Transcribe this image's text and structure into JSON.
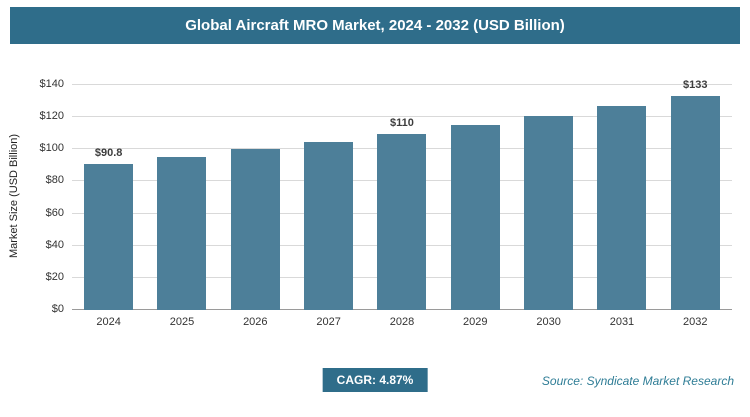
{
  "header": {
    "title": "Global Aircraft MRO Market, 2024 - 2032 (USD Billion)"
  },
  "chart_data": {
    "type": "bar",
    "title": "Global Aircraft MRO Market, 2024 - 2032 (USD Billion)",
    "categories": [
      "2024",
      "2025",
      "2026",
      "2027",
      "2028",
      "2029",
      "2030",
      "2031",
      "2032"
    ],
    "values": [
      90.8,
      95.2,
      99.9,
      104.7,
      109.8,
      115.2,
      120.8,
      126.7,
      133
    ],
    "bar_labels": [
      "$90.8",
      "",
      "",
      "",
      "$110",
      "",
      "",
      "",
      "$133"
    ],
    "xlabel": "",
    "ylabel": "Market Size (USD Billion)",
    "ylim": [
      0,
      140
    ],
    "ytick_step": 20,
    "ytick_labels": [
      "$0",
      "$20",
      "$40",
      "$60",
      "$80",
      "$100",
      "$120",
      "$140"
    ],
    "grid": true,
    "legend": "none",
    "bar_color": "#4d7f99"
  },
  "footer": {
    "cagr_label": "CAGR: 4.87%",
    "source": "Source: Syndicate Market Research"
  },
  "colors": {
    "header_bg": "#2f6d8a",
    "bar": "#4d7f99",
    "badge_bg": "#2f6d8a",
    "source_text": "#2f7d96",
    "gridline": "#d9d9d9"
  }
}
